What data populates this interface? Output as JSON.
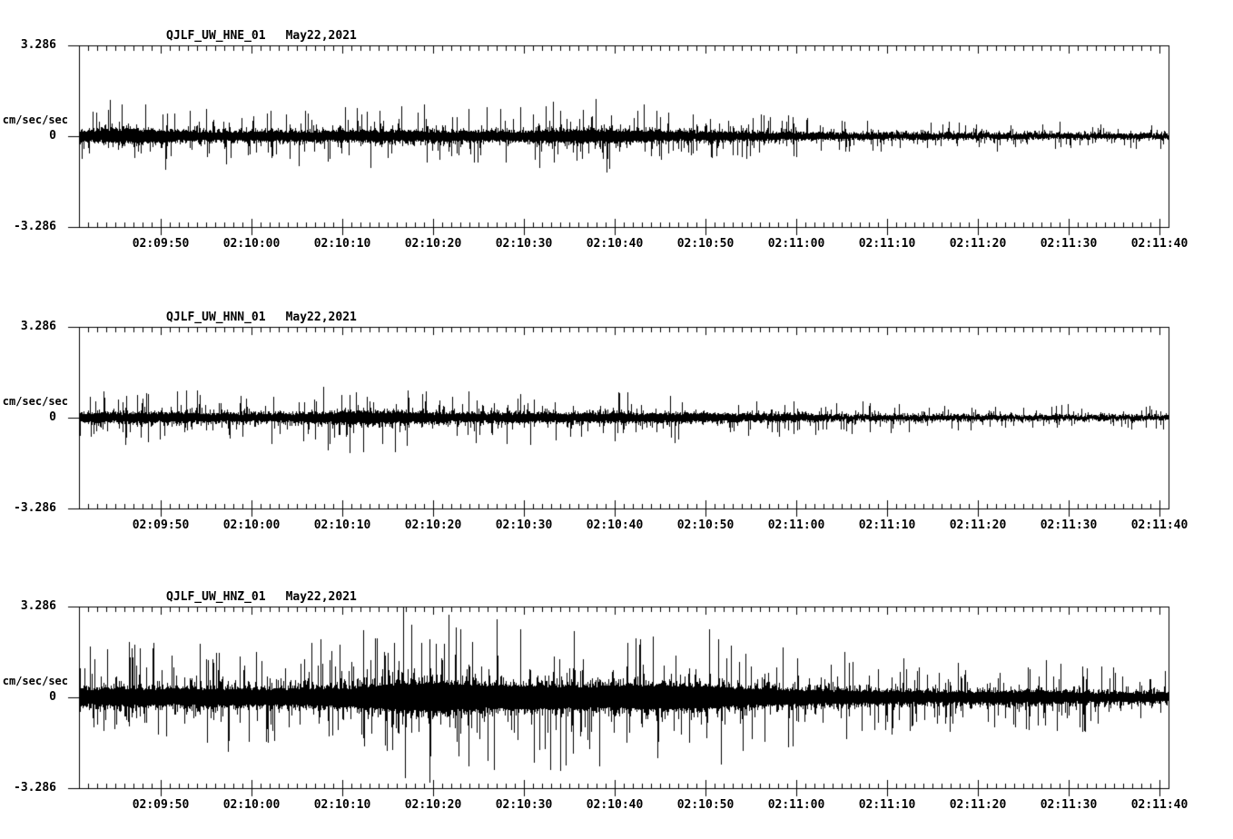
{
  "page": {
    "background_color": "#ffffff",
    "ink_color": "#000000",
    "description": "Three-channel strong-motion seismogram display for station QJLF (UW network), May 22, 2021, 02:09:41 - 02:11:41 UTC"
  },
  "chart_data": [
    {
      "type": "line",
      "subtype": "seismogram",
      "title": "QJLF_UW_HNE_01",
      "date": "May22,2021",
      "ylabel": "cm/sec/sec",
      "ylim": [
        -3.286,
        3.286
      ],
      "yticks": [
        "3.286",
        "0",
        "-3.286"
      ],
      "xticks": [
        "02:09:50",
        "02:10:00",
        "02:10:10",
        "02:10:20",
        "02:10:30",
        "02:10:40",
        "02:10:50",
        "02:11:00",
        "02:11:10",
        "02:11:20",
        "02:11:30",
        "02:11:40"
      ],
      "x_window": [
        "02:09:41",
        "02:11:41"
      ],
      "x_major_interval_sec": 10,
      "x_minor_interval_sec": 1,
      "grid": false,
      "legend": "none",
      "envelope_t_sec": [
        0,
        5,
        10,
        15,
        20,
        25,
        30,
        35,
        40,
        45,
        50,
        55,
        60,
        65,
        70,
        75,
        80,
        85,
        90,
        95,
        100,
        105,
        110,
        115,
        120
      ],
      "envelope_amp": [
        1.05,
        1.35,
        1.1,
        0.95,
        1.0,
        0.95,
        1.0,
        1.05,
        1.0,
        0.95,
        1.0,
        1.25,
        1.15,
        0.95,
        0.85,
        0.78,
        0.7,
        0.62,
        0.56,
        0.52,
        0.5,
        0.48,
        0.46,
        0.45,
        0.45
      ],
      "noise_seed": 101
    },
    {
      "type": "line",
      "subtype": "seismogram",
      "title": "QJLF_UW_HNN_01",
      "date": "May22,2021",
      "ylabel": "cm/sec/sec",
      "ylim": [
        -3.286,
        3.286
      ],
      "yticks": [
        "3.286",
        "0",
        "-3.286"
      ],
      "xticks": [
        "02:09:50",
        "02:10:00",
        "02:10:10",
        "02:10:20",
        "02:10:30",
        "02:10:40",
        "02:10:50",
        "02:11:00",
        "02:11:10",
        "02:11:20",
        "02:11:30",
        "02:11:40"
      ],
      "x_window": [
        "02:09:41",
        "02:11:41"
      ],
      "x_major_interval_sec": 10,
      "x_minor_interval_sec": 1,
      "grid": false,
      "legend": "none",
      "envelope_t_sec": [
        0,
        5,
        10,
        15,
        20,
        25,
        30,
        35,
        40,
        45,
        50,
        55,
        60,
        65,
        70,
        75,
        80,
        85,
        90,
        95,
        100,
        105,
        110,
        115,
        120
      ],
      "envelope_amp": [
        0.85,
        0.9,
        0.95,
        0.85,
        0.8,
        0.9,
        1.2,
        1.1,
        0.9,
        0.85,
        0.9,
        0.85,
        0.95,
        0.85,
        0.75,
        0.68,
        0.6,
        0.52,
        0.5,
        0.46,
        0.44,
        0.42,
        0.4,
        0.42,
        0.4
      ],
      "noise_seed": 202
    },
    {
      "type": "line",
      "subtype": "seismogram",
      "title": "QJLF_UW_HNZ_01",
      "date": "May22,2021",
      "ylabel": "cm/sec/sec",
      "ylim": [
        -3.286,
        3.286
      ],
      "yticks": [
        "3.286",
        "0",
        "-3.286"
      ],
      "xticks": [
        "02:09:50",
        "02:10:00",
        "02:10:10",
        "02:10:20",
        "02:10:30",
        "02:10:40",
        "02:10:50",
        "02:11:00",
        "02:11:10",
        "02:11:20",
        "02:11:30",
        "02:11:40"
      ],
      "x_window": [
        "02:09:41",
        "02:11:41"
      ],
      "x_major_interval_sec": 10,
      "x_minor_interval_sec": 1,
      "grid": false,
      "legend": "none",
      "envelope_t_sec": [
        0,
        5,
        10,
        15,
        20,
        25,
        30,
        35,
        40,
        45,
        50,
        55,
        60,
        65,
        70,
        75,
        80,
        85,
        90,
        95,
        100,
        105,
        110,
        115,
        120
      ],
      "envelope_amp": [
        1.7,
        1.85,
        1.75,
        1.8,
        1.7,
        1.8,
        2.0,
        2.9,
        3.2,
        2.5,
        2.6,
        2.4,
        2.5,
        2.6,
        2.2,
        1.8,
        1.6,
        1.45,
        1.3,
        1.2,
        1.15,
        1.35,
        1.15,
        1.0,
        1.0
      ],
      "noise_seed": 303
    }
  ]
}
